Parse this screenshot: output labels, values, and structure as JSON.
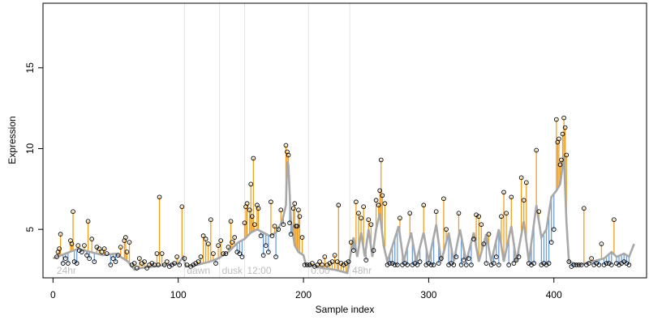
{
  "chart_data": {
    "type": "scatter",
    "title": "",
    "xlabel": "Sample index",
    "ylabel": "Expression",
    "xlim": [
      -8,
      474
    ],
    "ylim": [
      2.0,
      19.0
    ],
    "x_ticks": [
      0,
      100,
      200,
      300,
      400
    ],
    "y_ticks": [
      5,
      10,
      15
    ],
    "grid": false,
    "legend": "none",
    "colors": {
      "above_fit": "#f0a020",
      "below_fit": "#6f9fdc",
      "fit_line": "#a8a8a8",
      "points": "#000000",
      "separator": "#e3e3e3",
      "segment_label": "#bdbdbd"
    },
    "segments": [
      {
        "label": "24hr",
        "x_start": 1
      },
      {
        "label": "dawn",
        "x_start": 105
      },
      {
        "label": "dusk",
        "x_start": 133
      },
      {
        "label": "12:00",
        "x_start": 153
      },
      {
        "label": "0:00",
        "x_start": 204
      },
      {
        "label": "48hr",
        "x_start": 237
      }
    ],
    "points": [
      [
        3,
        3.3
      ],
      [
        5,
        3.8
      ],
      [
        8,
        2.9
      ],
      [
        10,
        3.2
      ],
      [
        12,
        2.9
      ],
      [
        15,
        4.1
      ],
      [
        17,
        3.0
      ],
      [
        19,
        2.9
      ],
      [
        21,
        3.7
      ],
      [
        23,
        3.6
      ],
      [
        25,
        4.0
      ],
      [
        27,
        3.4
      ],
      [
        29,
        3.2
      ],
      [
        31,
        4.4
      ],
      [
        33,
        3.0
      ],
      [
        35,
        3.9
      ],
      [
        37,
        3.8
      ],
      [
        39,
        3.6
      ],
      [
        41,
        3.8
      ],
      [
        43,
        3.5
      ],
      [
        46,
        2.8
      ],
      [
        48,
        3.2
      ],
      [
        50,
        3.0
      ],
      [
        52,
        3.4
      ],
      [
        54,
        3.9
      ],
      [
        57,
        4.3
      ],
      [
        59,
        3.6
      ],
      [
        61,
        4.2
      ],
      [
        6,
        4.7
      ],
      [
        14,
        4.3
      ],
      [
        16,
        6.1
      ],
      [
        28,
        5.5
      ],
      [
        58,
        4.5
      ],
      [
        4,
        3.6
      ],
      [
        20,
        4.0
      ],
      [
        63,
        2.8
      ],
      [
        65,
        2.9
      ],
      [
        67,
        2.6
      ],
      [
        69,
        3.2
      ],
      [
        71,
        2.9
      ],
      [
        73,
        3.0
      ],
      [
        75,
        2.6
      ],
      [
        77,
        2.8
      ],
      [
        79,
        2.9
      ],
      [
        81,
        2.8
      ],
      [
        83,
        3.5
      ],
      [
        84,
        2.8
      ],
      [
        85,
        7.0
      ],
      [
        87,
        3.5
      ],
      [
        89,
        2.8
      ],
      [
        91,
        3.0
      ],
      [
        93,
        2.7
      ],
      [
        95,
        2.8
      ],
      [
        97,
        2.9
      ],
      [
        99,
        3.3
      ],
      [
        101,
        2.8
      ],
      [
        103,
        6.4
      ],
      [
        105,
        3.2
      ],
      [
        107,
        2.8
      ],
      [
        110,
        2.7
      ],
      [
        112,
        2.8
      ],
      [
        114,
        2.9
      ],
      [
        116,
        3.0
      ],
      [
        118,
        3.3
      ],
      [
        120,
        4.6
      ],
      [
        122,
        4.4
      ],
      [
        124,
        4.1
      ],
      [
        126,
        5.6
      ],
      [
        128,
        3.5
      ],
      [
        130,
        2.9
      ],
      [
        132,
        4.0
      ],
      [
        134,
        4.3
      ],
      [
        136,
        3.5
      ],
      [
        138,
        3.5
      ],
      [
        140,
        3.9
      ],
      [
        142,
        5.5
      ],
      [
        143,
        4.2
      ],
      [
        145,
        4.5
      ],
      [
        147,
        3.6
      ],
      [
        149,
        3.5
      ],
      [
        151,
        3.3
      ],
      [
        153,
        5.4
      ],
      [
        154,
        6.4
      ],
      [
        155,
        6.6
      ],
      [
        157,
        6.2
      ],
      [
        158,
        7.8
      ],
      [
        159,
        5.8
      ],
      [
        160,
        9.4
      ],
      [
        161,
        5.3
      ],
      [
        163,
        6.5
      ],
      [
        164,
        6.3
      ],
      [
        166,
        4.6
      ],
      [
        168,
        3.4
      ],
      [
        170,
        4.0
      ],
      [
        172,
        3.6
      ],
      [
        174,
        6.7
      ],
      [
        175,
        4.6
      ],
      [
        177,
        5.2
      ],
      [
        178,
        3.3
      ],
      [
        180,
        5.0
      ],
      [
        182,
        6.2
      ],
      [
        184,
        5.3
      ],
      [
        186,
        10.2
      ],
      [
        187,
        9.8
      ],
      [
        188,
        9.6
      ],
      [
        189,
        5.4
      ],
      [
        190,
        4.7
      ],
      [
        192,
        6.3
      ],
      [
        193,
        6.6
      ],
      [
        194,
        5.2
      ],
      [
        195,
        5.2
      ],
      [
        196,
        6.2
      ],
      [
        197,
        5.8
      ],
      [
        199,
        4.5
      ],
      [
        201,
        2.8
      ],
      [
        203,
        2.8
      ],
      [
        205,
        2.8
      ],
      [
        207,
        2.9
      ],
      [
        209,
        2.7
      ],
      [
        211,
        2.8
      ],
      [
        213,
        3.0
      ],
      [
        215,
        2.8
      ],
      [
        217,
        3.3
      ],
      [
        219,
        2.8
      ],
      [
        221,
        2.9
      ],
      [
        223,
        3.0
      ],
      [
        225,
        3.4
      ],
      [
        227,
        3.0
      ],
      [
        228,
        6.5
      ],
      [
        230,
        2.9
      ],
      [
        232,
        2.8
      ],
      [
        234,
        2.9
      ],
      [
        236,
        3.0
      ],
      [
        238,
        4.2
      ],
      [
        240,
        3.7
      ],
      [
        242,
        6.7
      ],
      [
        244,
        6.0
      ],
      [
        246,
        5.7
      ],
      [
        248,
        6.4
      ],
      [
        250,
        3.1
      ],
      [
        252,
        5.6
      ],
      [
        254,
        5.3
      ],
      [
        256,
        3.7
      ],
      [
        258,
        6.8
      ],
      [
        260,
        6.5
      ],
      [
        261,
        7.4
      ],
      [
        262,
        9.3
      ],
      [
        263,
        7.1
      ],
      [
        265,
        6.6
      ],
      [
        267,
        2.8
      ],
      [
        269,
        2.9
      ],
      [
        271,
        2.9
      ],
      [
        273,
        2.8
      ],
      [
        275,
        2.8
      ],
      [
        277,
        5.7
      ],
      [
        279,
        2.8
      ],
      [
        281,
        2.9
      ],
      [
        283,
        2.8
      ],
      [
        285,
        6.0
      ],
      [
        287,
        2.8
      ],
      [
        289,
        2.9
      ],
      [
        291,
        2.8
      ],
      [
        293,
        3.0
      ],
      [
        296,
        6.5
      ],
      [
        298,
        2.8
      ],
      [
        300,
        2.9
      ],
      [
        302,
        2.8
      ],
      [
        304,
        2.8
      ],
      [
        306,
        6.1
      ],
      [
        308,
        2.9
      ],
      [
        310,
        3.2
      ],
      [
        312,
        6.9
      ],
      [
        314,
        5.0
      ],
      [
        316,
        2.8
      ],
      [
        318,
        2.9
      ],
      [
        320,
        2.8
      ],
      [
        322,
        3.3
      ],
      [
        324,
        6.0
      ],
      [
        326,
        2.8
      ],
      [
        328,
        3.1
      ],
      [
        330,
        2.8
      ],
      [
        332,
        3.2
      ],
      [
        334,
        2.8
      ],
      [
        336,
        4.4
      ],
      [
        338,
        5.9
      ],
      [
        340,
        5.8
      ],
      [
        342,
        5.3
      ],
      [
        344,
        4.1
      ],
      [
        346,
        2.9
      ],
      [
        348,
        4.7
      ],
      [
        350,
        2.8
      ],
      [
        352,
        2.9
      ],
      [
        354,
        3.3
      ],
      [
        356,
        2.8
      ],
      [
        358,
        5.8
      ],
      [
        360,
        7.3
      ],
      [
        362,
        6.0
      ],
      [
        364,
        2.8
      ],
      [
        366,
        7.0
      ],
      [
        368,
        2.9
      ],
      [
        370,
        3.1
      ],
      [
        372,
        3.3
      ],
      [
        374,
        8.2
      ],
      [
        376,
        6.8
      ],
      [
        378,
        7.9
      ],
      [
        380,
        2.9
      ],
      [
        382,
        2.8
      ],
      [
        384,
        2.9
      ],
      [
        386,
        9.9
      ],
      [
        388,
        6.1
      ],
      [
        390,
        2.8
      ],
      [
        392,
        2.9
      ],
      [
        394,
        2.8
      ],
      [
        396,
        2.9
      ],
      [
        398,
        4.2
      ],
      [
        400,
        5.0
      ],
      [
        402,
        11.8
      ],
      [
        403,
        10.4
      ],
      [
        404,
        10.6
      ],
      [
        405,
        9.0
      ],
      [
        406,
        9.3
      ],
      [
        407,
        10.9
      ],
      [
        408,
        11.9
      ],
      [
        409,
        11.3
      ],
      [
        410,
        9.6
      ],
      [
        412,
        3.0
      ],
      [
        414,
        2.7
      ],
      [
        416,
        2.8
      ],
      [
        418,
        2.8
      ],
      [
        420,
        2.8
      ],
      [
        422,
        2.8
      ],
      [
        424,
        6.3
      ],
      [
        426,
        2.8
      ],
      [
        428,
        2.9
      ],
      [
        430,
        3.2
      ],
      [
        432,
        2.8
      ],
      [
        434,
        2.9
      ],
      [
        436,
        2.8
      ],
      [
        438,
        4.1
      ],
      [
        440,
        2.8
      ],
      [
        442,
        2.9
      ],
      [
        444,
        2.9
      ],
      [
        446,
        2.8
      ],
      [
        448,
        5.6
      ],
      [
        450,
        2.9
      ],
      [
        452,
        2.8
      ],
      [
        454,
        2.9
      ],
      [
        456,
        3.0
      ],
      [
        458,
        2.9
      ],
      [
        460,
        2.8
      ]
    ],
    "fit": [
      [
        0,
        3.2
      ],
      [
        10,
        3.5
      ],
      [
        20,
        3.8
      ],
      [
        30,
        3.6
      ],
      [
        40,
        3.4
      ],
      [
        50,
        3.5
      ],
      [
        60,
        3.0
      ],
      [
        65,
        2.5
      ],
      [
        70,
        2.6
      ],
      [
        80,
        2.7
      ],
      [
        90,
        2.8
      ],
      [
        100,
        2.9
      ],
      [
        104,
        3.3
      ],
      [
        106,
        2.7
      ],
      [
        115,
        2.8
      ],
      [
        125,
        3.0
      ],
      [
        132,
        3.2
      ],
      [
        134,
        3.3
      ],
      [
        140,
        3.6
      ],
      [
        148,
        4.2
      ],
      [
        153,
        4.4
      ],
      [
        158,
        4.8
      ],
      [
        163,
        5.0
      ],
      [
        168,
        4.8
      ],
      [
        173,
        4.6
      ],
      [
        178,
        4.8
      ],
      [
        183,
        5.5
      ],
      [
        186,
        6.5
      ],
      [
        187,
        9.2
      ],
      [
        188,
        9.0
      ],
      [
        190,
        5.5
      ],
      [
        193,
        4.0
      ],
      [
        196,
        3.6
      ],
      [
        200,
        3.4
      ],
      [
        202,
        2.8
      ],
      [
        215,
        2.6
      ],
      [
        225,
        2.5
      ],
      [
        235,
        2.3
      ],
      [
        237,
        3.2
      ],
      [
        240,
        4.5
      ],
      [
        243,
        3.3
      ],
      [
        246,
        4.8
      ],
      [
        249,
        3.3
      ],
      [
        252,
        5.0
      ],
      [
        255,
        3.3
      ],
      [
        258,
        5.0
      ],
      [
        261,
        6.0
      ],
      [
        264,
        4.0
      ],
      [
        267,
        3.0
      ],
      [
        272,
        4.2
      ],
      [
        276,
        5.2
      ],
      [
        280,
        3.0
      ],
      [
        286,
        4.8
      ],
      [
        290,
        3.0
      ],
      [
        296,
        4.8
      ],
      [
        300,
        3.0
      ],
      [
        306,
        5.3
      ],
      [
        310,
        3.0
      ],
      [
        316,
        4.8
      ],
      [
        320,
        3.0
      ],
      [
        325,
        5.0
      ],
      [
        330,
        3.0
      ],
      [
        336,
        4.8
      ],
      [
        340,
        3.0
      ],
      [
        346,
        4.7
      ],
      [
        350,
        3.0
      ],
      [
        356,
        5.0
      ],
      [
        360,
        3.0
      ],
      [
        366,
        5.2
      ],
      [
        370,
        3.0
      ],
      [
        376,
        5.5
      ],
      [
        380,
        3.0
      ],
      [
        386,
        6.5
      ],
      [
        390,
        4.5
      ],
      [
        394,
        5.0
      ],
      [
        398,
        7.0
      ],
      [
        402,
        7.4
      ],
      [
        405,
        7.8
      ],
      [
        408,
        9.5
      ],
      [
        410,
        5.5
      ],
      [
        412,
        3.0
      ],
      [
        420,
        2.8
      ],
      [
        430,
        3.0
      ],
      [
        440,
        3.2
      ],
      [
        446,
        3.6
      ],
      [
        450,
        3.3
      ],
      [
        456,
        3.5
      ],
      [
        460,
        3.3
      ],
      [
        464,
        4.1
      ]
    ]
  }
}
